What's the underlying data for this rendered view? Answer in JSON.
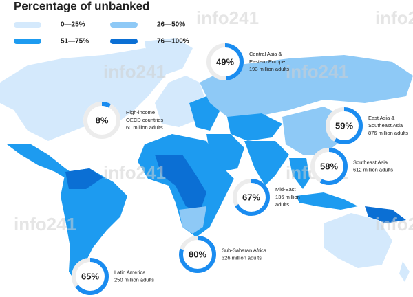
{
  "title": "Percentage of unbanked",
  "legend": [
    {
      "label": "0—25%",
      "color": "#d4e9fc"
    },
    {
      "label": "26—50%",
      "color": "#8ec9f6"
    },
    {
      "label": "51—75%",
      "color": "#1d9bf0"
    },
    {
      "label": "76—100%",
      "color": "#0b6fd4"
    }
  ],
  "watermark": "info241",
  "regions": [
    {
      "name": [
        "Central Asia &",
        "Eastern Europe"
      ],
      "percent": {
        "value": 49,
        "label": "49%"
      },
      "adults": "193 million adults"
    },
    {
      "name": [
        "High-income",
        "OECD countries"
      ],
      "percent": {
        "value": 8,
        "label": "8%"
      },
      "adults": "60 million adults"
    },
    {
      "name": [
        "East Asia &",
        "Southeast Asia"
      ],
      "percent": {
        "value": 59,
        "label": "59%"
      },
      "adults": "876 million adults"
    },
    {
      "name": [
        "Southeast Asia"
      ],
      "percent": {
        "value": 58,
        "label": "58%"
      },
      "adults": "612 million adults"
    },
    {
      "name": [
        "Mid-East"
      ],
      "percent": {
        "value": 67,
        "label": "67%"
      },
      "adults": [
        "136 million",
        "adults"
      ]
    },
    {
      "name": [
        "Sub-Saharan Africa"
      ],
      "percent": {
        "value": 80,
        "label": "80%"
      },
      "adults": "326 million adults"
    },
    {
      "name": [
        "Latin America"
      ],
      "percent": {
        "value": 65,
        "label": "65%"
      },
      "adults": "250 million adults"
    }
  ]
}
